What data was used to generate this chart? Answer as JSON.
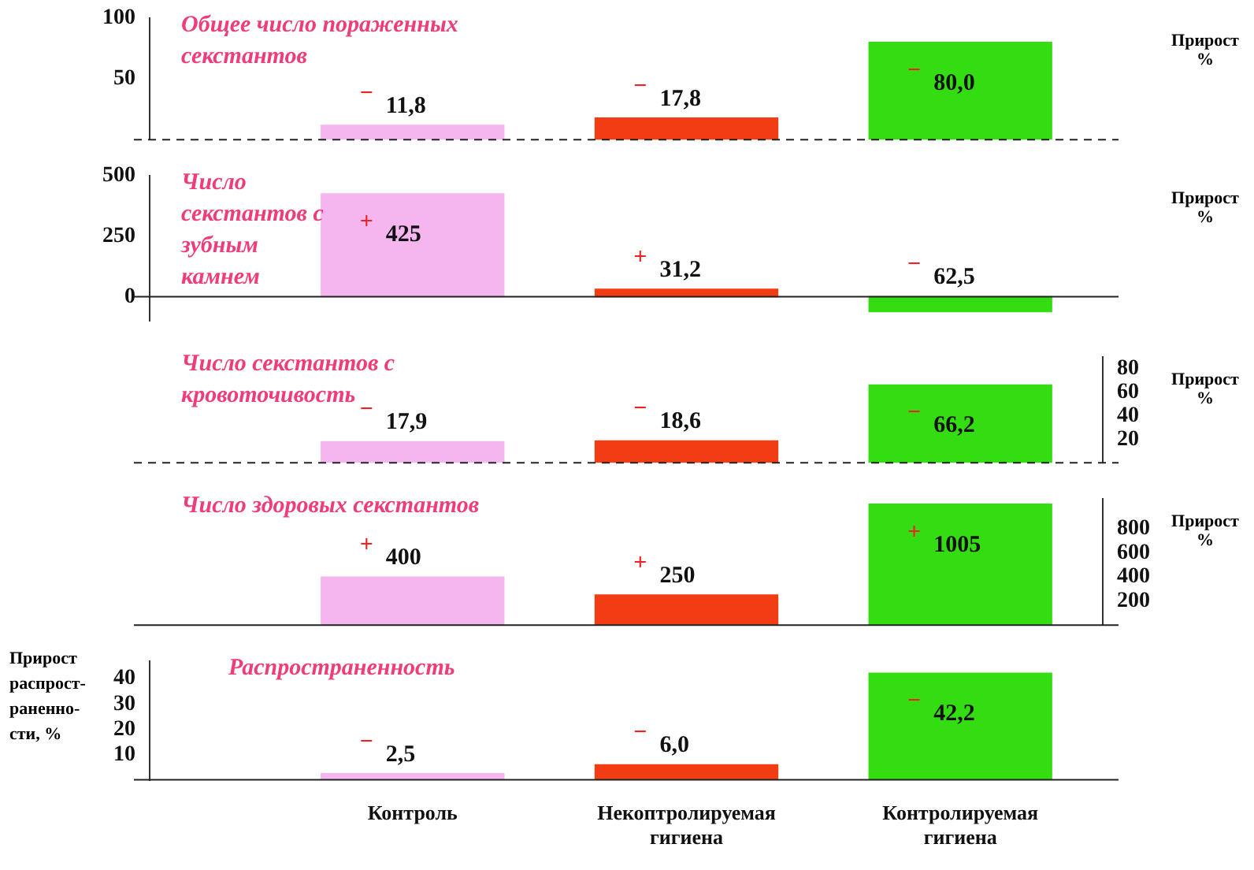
{
  "chart_data": [
    {
      "type": "bar",
      "title": "Общее число пораженных секстантов",
      "y2label": "Прирост %",
      "categories": [
        null,
        null,
        null
      ],
      "colors": [
        "#f5b6f0",
        "#f23c14",
        "#33dd11"
      ],
      "values": [
        -11.8,
        -17.8,
        -80.0
      ],
      "value_labels": [
        "− 11,8",
        "− 17,8",
        "− 80,0"
      ],
      "ylim": [
        0,
        -100
      ],
      "yticks": [
        {
          "value": -50,
          "label": "50"
        },
        {
          "value": -100,
          "label": "100"
        }
      ],
      "tick_labels": "y"
    },
    {
      "type": "bar",
      "title": "Число секстантов с зубным камнем",
      "y2label": "Прирост %",
      "categories": [
        null,
        null,
        null
      ],
      "colors": [
        "#f5b6f0",
        "#f23c14",
        "#33dd11"
      ],
      "values": [
        425,
        31.2,
        -62.5
      ],
      "value_labels": [
        "+ 425",
        "+ 31,2",
        "− 62,5"
      ],
      "ylim": [
        -100,
        500
      ],
      "yticks": [
        0,
        250,
        500
      ],
      "tick_labels": "y"
    },
    {
      "type": "bar",
      "title": "Число секстантов с кровоточивость",
      "y2label": "Прирост %",
      "categories": [
        null,
        null,
        null
      ],
      "colors": [
        "#f5b6f0",
        "#f23c14",
        "#33dd11"
      ],
      "series": [
        {
          "axis": "y2",
          "values": [
            -17.9,
            -18.6,
            -66.2
          ]
        }
      ],
      "value_labels": [
        "− 17,9",
        "− 18,6",
        "− 66,2"
      ],
      "y2lim": [
        0,
        -90
      ],
      "y2ticks": [
        {
          "value": -20,
          "label": "20"
        },
        {
          "value": -40,
          "label": "40"
        },
        {
          "value": -60,
          "label": "60"
        },
        {
          "value": -80,
          "label": "80"
        }
      ],
      "tick_labels": "y"
    },
    {
      "type": "bar",
      "title": "Число здоровых секстантов",
      "y2label": "Прирост %",
      "categories": [
        null,
        null,
        null
      ],
      "colors": [
        "#f5b6f0",
        "#f23c14",
        "#33dd11"
      ],
      "series": [
        {
          "axis": "y2",
          "values": [
            400,
            250,
            1005
          ]
        }
      ],
      "value_labels": [
        "+ 400",
        "+ 250",
        "+ 1005"
      ],
      "y2lim": [
        0,
        1050
      ],
      "y2ticks": [
        200,
        400,
        600,
        800
      ],
      "tick_labels": "y"
    },
    {
      "type": "bar",
      "title": "Распространенность",
      "ylabel": "Прирост распрост-раненно-сти, %",
      "categories": [
        "Контроль",
        "Некоптролируемая гигиена",
        "Контролируемая гигиена"
      ],
      "colors": [
        "#f5b6f0",
        "#f23c14",
        "#33dd11"
      ],
      "values": [
        -2.5,
        -6.0,
        -42.2
      ],
      "value_labels": [
        "− 2,5",
        "− 6,0",
        "− 42,2"
      ],
      "ylim": [
        0,
        -47
      ],
      "yticks": [
        {
          "value": -10,
          "label": "10"
        },
        {
          "value": -20,
          "label": "20"
        },
        {
          "value": -30,
          "label": "30"
        },
        {
          "value": -40,
          "label": "40"
        }
      ]
    }
  ]
}
